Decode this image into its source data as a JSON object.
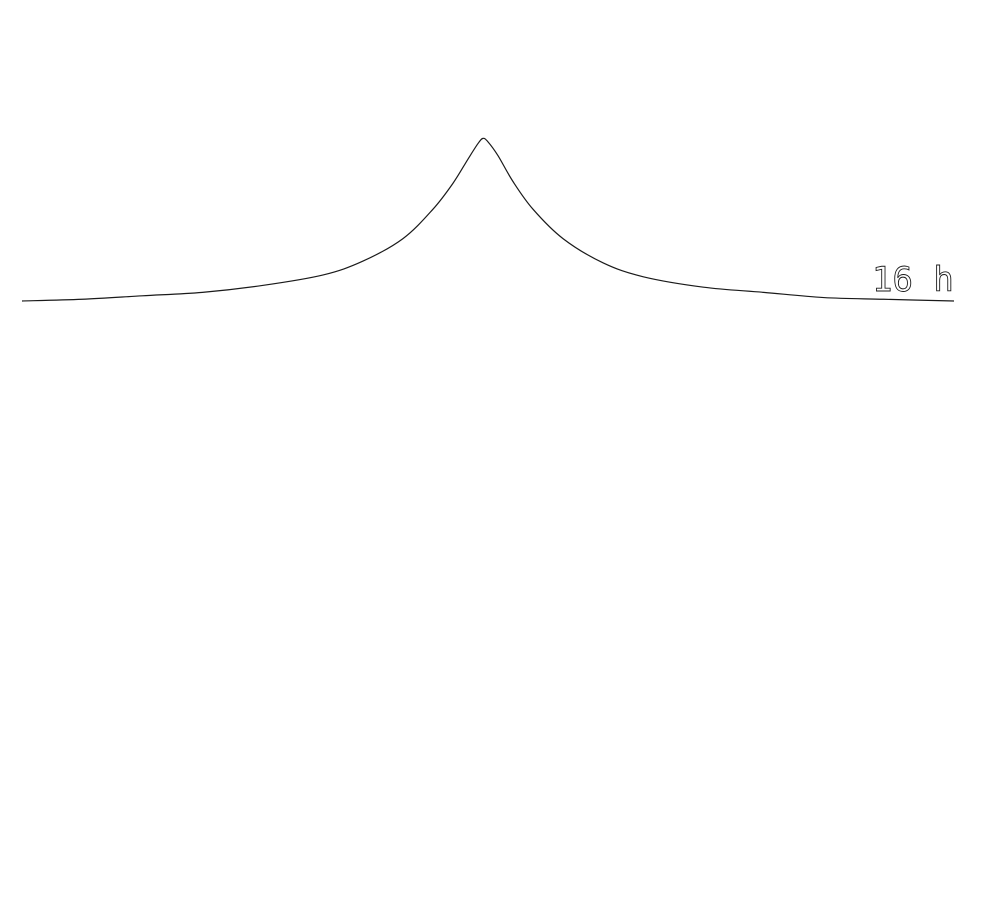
{
  "chart_data": {
    "type": "line",
    "title": "",
    "xlabel": "",
    "ylabel": "",
    "grid": false,
    "series": [
      {
        "label": "16 h",
        "x": [
          0,
          60,
          120,
          180,
          240,
          300,
          340,
          380,
          410,
          430,
          445,
          455,
          460,
          465,
          475,
          490,
          510,
          540,
          580,
          620,
          680,
          740,
          800,
          860,
          930
        ],
        "y": [
          0.0,
          0.01,
          0.03,
          0.05,
          0.09,
          0.15,
          0.23,
          0.36,
          0.53,
          0.68,
          0.82,
          0.91,
          0.94,
          0.92,
          0.84,
          0.69,
          0.53,
          0.36,
          0.22,
          0.14,
          0.08,
          0.05,
          0.02,
          0.01,
          0.0
        ]
      }
    ]
  }
}
